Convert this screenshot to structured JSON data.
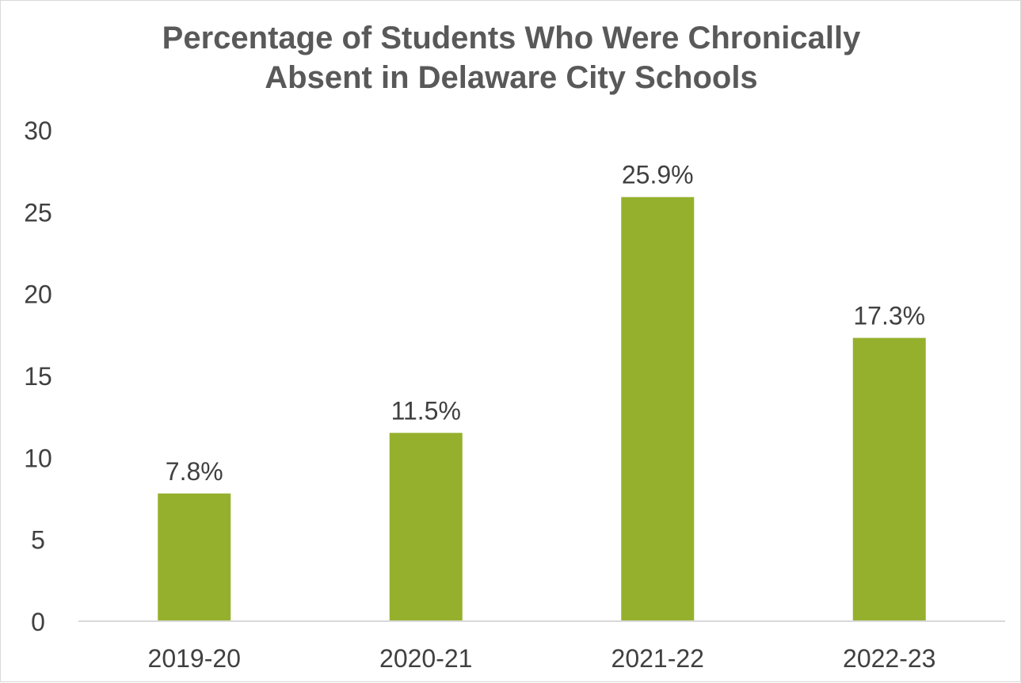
{
  "chart_data": {
    "type": "bar",
    "title_lines": [
      "Percentage of Students Who Were Chronically",
      "Absent in Delaware City Schools"
    ],
    "categories": [
      "2019-20",
      "2020-21",
      "2021-22",
      "2022-23"
    ],
    "values": [
      7.8,
      11.5,
      25.9,
      17.3
    ],
    "data_labels": [
      "7.8%",
      "11.5%",
      "25.9%",
      "17.3%"
    ],
    "y_ticks": [
      "0",
      "5",
      "10",
      "15",
      "20",
      "25",
      "30"
    ],
    "ylim": [
      0,
      30
    ],
    "xlabel": "",
    "ylabel": "",
    "grid": false,
    "legend": "none",
    "bar_color": "#95b02c"
  }
}
